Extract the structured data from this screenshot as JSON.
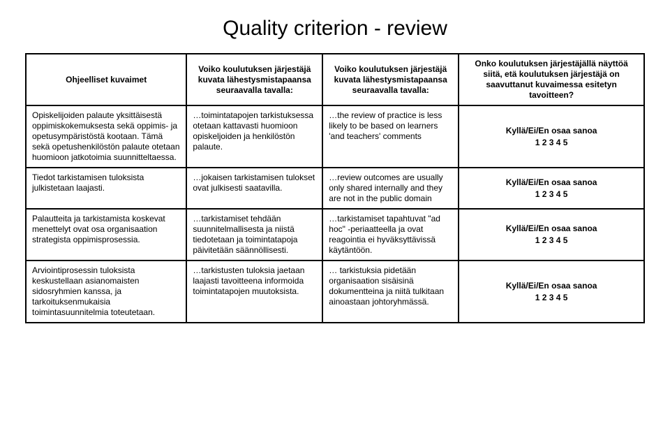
{
  "title": "Quality criterion - review",
  "headers": {
    "c1": "Ohjeelliset kuvaimet",
    "c2": "Voiko koulutuksen järjestäjä kuvata lähestysmistapaansa seuraavalla tavalla:",
    "c3": "Voiko koulutuksen järjestäjä kuvata lähestysmistapaansa seuraavalla tavalla:",
    "c4": "Onko koulutuksen järjestäjällä näyttöä siitä, etä koulutuksen järjestäjä on saavuttanut kuvaimessa esitetyn tavoitteen?"
  },
  "rows": [
    {
      "a": "Opiskelijoiden palaute yksittäisestä oppimiskokemuksesta sekä oppimis- ja opetusympäristöstä kootaan. Tämä sekä opetushenkilöstön palaute otetaan huomioon jatkotoimia suunnitteltaessa.",
      "b": "…toimintatapojen tarkistuksessa otetaan kattavasti huomioon opiskeljoiden ja henkilöstön palaute.",
      "c": "…the review of practice is less likely to be based on learners 'and teachers' comments",
      "d_label": "Kyllä/Ei/En osaa sanoa",
      "d_nums": "1 2 3 4 5"
    },
    {
      "a": "Tiedot tarkistamisen tuloksista julkistetaan laajasti.",
      "b": "…jokaisen tarkistamisen tulokset ovat julkisesti saatavilla.",
      "c": "…review outcomes are usually only shared internally and they are not in the public domain",
      "d_label": "Kyllä/Ei/En osaa sanoa",
      "d_nums": "1 2 3 4 5"
    },
    {
      "a": "Palautteita ja tarkistamista koskevat menettelyt ovat osa organisaation strategista oppimisprosessia.",
      "b": "…tarkistamiset tehdään suunnitelmallisesta ja niistä tiedotetaan ja toimintatapoja päivitetään säännöllisesti.",
      "c": "…tarkistamiset tapahtuvat \"ad hoc\" -periaatteella ja ovat reagointia ei hyväksyttävissä käytäntöön.",
      "d_label": "Kyllä/Ei/En osaa sanoa",
      "d_nums": "1 2 3 4 5"
    },
    {
      "a": "Arviointiprosessin tuloksista keskustellaan asianomaisten sidosryhmien kanssa, ja tarkoituksenmukaisia toimintasuunnitelmia toteutetaan.",
      "b": "…tarkistusten tuloksia jaetaan laajasti tavoitteena informoida toimintatapojen muutoksista.",
      "c": "… tarkistuksia pidetään organisaation sisäisinä dokumentteina ja niitä tulkitaan ainoastaan johtoryhmässä.",
      "d_label": "Kyllä/Ei/En osaa sanoa",
      "d_nums": "1 2 3 4 5"
    }
  ]
}
